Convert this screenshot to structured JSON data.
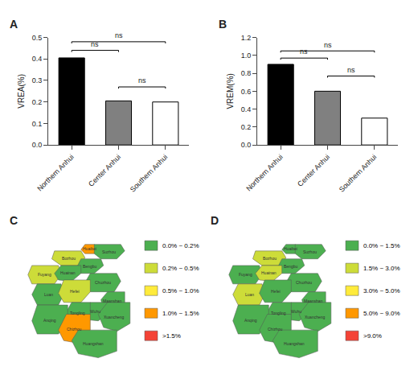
{
  "chart_data": [
    {
      "type": "bar",
      "title": "A",
      "categories": [
        "Northern Anhui",
        "Center Anhui",
        "Southern Anhui"
      ],
      "values": [
        0.405,
        0.205,
        0.2
      ],
      "colors": [
        "black",
        "#808080",
        "white"
      ],
      "ylabel": "VREA(%)",
      "ylim": [
        0,
        0.5
      ],
      "yticks": [
        {
          "value": 0,
          "label": "0.0"
        },
        0.1,
        0.2,
        0.3,
        0.4,
        0.5
      ],
      "grid": false,
      "annotations": [
        {
          "bars": [
            0,
            1
          ],
          "y": 0.44,
          "text": "ns"
        },
        {
          "bars": [
            0,
            2
          ],
          "y": 0.48,
          "text": "ns"
        },
        {
          "bars": [
            1,
            2
          ],
          "y": 0.27,
          "text": "ns"
        }
      ]
    },
    {
      "type": "bar",
      "title": "B",
      "categories": [
        "Northern Anhui",
        "Center Anhui",
        "Southern Anhui"
      ],
      "values": [
        0.9,
        0.6,
        0.3
      ],
      "colors": [
        "black",
        "#808080",
        "white"
      ],
      "ylabel": "VREM(%)",
      "ylim": [
        0,
        1.2
      ],
      "yticks": [
        {
          "value": 0,
          "label": "0.0"
        },
        0.2,
        0.4,
        0.6,
        0.8,
        {
          "value": 1,
          "label": "1.0"
        },
        1.2
      ],
      "grid": false,
      "annotations": [
        {
          "bars": [
            0,
            1
          ],
          "y": 0.97,
          "text": "ns"
        },
        {
          "bars": [
            0,
            2
          ],
          "y": 1.05,
          "text": "ns"
        },
        {
          "bars": [
            1,
            2
          ],
          "y": 0.77,
          "text": "ns"
        }
      ]
    },
    {
      "type": "map",
      "title": "C",
      "xlim": [
        0,
        1
      ],
      "ylim": [
        0,
        1
      ],
      "tick_labels": false,
      "grid": false,
      "series": [
        {
          "name": "0.0% ~ 0.2%",
          "color": "#4caf50"
        },
        {
          "name": "0.2% ~ 0.5%",
          "color": "#cddc39"
        },
        {
          "name": "0.5% ~ 1.0%",
          "color": "#ffeb3b"
        },
        {
          "name": "1.0% ~ 1.5%",
          "color": "#ff9800"
        },
        {
          "name": ">1.5%",
          "color": "#f44336"
        }
      ],
      "regions": [
        {
          "name": "Huaibei",
          "color": "#ff9800",
          "polygon": [
            [
              0.58,
              0.93
            ],
            [
              0.65,
              0.93
            ],
            [
              0.68,
              0.9
            ],
            [
              0.65,
              0.86
            ],
            [
              0.58,
              0.86
            ],
            [
              0.55,
              0.89
            ]
          ]
        },
        {
          "name": "Suzhou",
          "color": "#4caf50",
          "polygon": [
            [
              0.65,
              0.93
            ],
            [
              0.85,
              0.93
            ],
            [
              0.88,
              0.88
            ],
            [
              0.82,
              0.82
            ],
            [
              0.7,
              0.82
            ],
            [
              0.65,
              0.86
            ]
          ]
        },
        {
          "name": "Bozhou",
          "color": "#cddc39",
          "polygon": [
            [
              0.35,
              0.88
            ],
            [
              0.55,
              0.88
            ],
            [
              0.58,
              0.83
            ],
            [
              0.55,
              0.77
            ],
            [
              0.4,
              0.77
            ],
            [
              0.33,
              0.82
            ]
          ]
        },
        {
          "name": "Fuyang",
          "color": "#cddc39",
          "polygon": [
            [
              0.18,
              0.77
            ],
            [
              0.38,
              0.77
            ],
            [
              0.4,
              0.7
            ],
            [
              0.35,
              0.63
            ],
            [
              0.18,
              0.63
            ],
            [
              0.15,
              0.7
            ]
          ]
        },
        {
          "name": "Bengbu",
          "color": "#4caf50",
          "polygon": [
            [
              0.55,
              0.82
            ],
            [
              0.7,
              0.82
            ],
            [
              0.72,
              0.77
            ],
            [
              0.65,
              0.71
            ],
            [
              0.55,
              0.71
            ],
            [
              0.52,
              0.76
            ]
          ]
        },
        {
          "name": "Huainan",
          "color": "#4caf50",
          "polygon": [
            [
              0.4,
              0.77
            ],
            [
              0.55,
              0.77
            ],
            [
              0.55,
              0.71
            ],
            [
              0.48,
              0.65
            ],
            [
              0.38,
              0.66
            ],
            [
              0.35,
              0.71
            ]
          ]
        },
        {
          "name": "Chuzhou",
          "color": "#4caf50",
          "polygon": [
            [
              0.62,
              0.71
            ],
            [
              0.82,
              0.71
            ],
            [
              0.85,
              0.65
            ],
            [
              0.8,
              0.57
            ],
            [
              0.62,
              0.57
            ],
            [
              0.58,
              0.64
            ]
          ]
        },
        {
          "name": "Luan",
          "color": "#4caf50",
          "polygon": [
            [
              0.22,
              0.63
            ],
            [
              0.4,
              0.63
            ],
            [
              0.42,
              0.55
            ],
            [
              0.38,
              0.47
            ],
            [
              0.22,
              0.47
            ],
            [
              0.18,
              0.55
            ]
          ]
        },
        {
          "name": "Hefei",
          "color": "#cddc39",
          "polygon": [
            [
              0.42,
              0.66
            ],
            [
              0.62,
              0.66
            ],
            [
              0.62,
              0.57
            ],
            [
              0.55,
              0.49
            ],
            [
              0.42,
              0.49
            ],
            [
              0.38,
              0.56
            ]
          ]
        },
        {
          "name": "Maanshan",
          "color": "#4caf50",
          "polygon": [
            [
              0.75,
              0.57
            ],
            [
              0.88,
              0.57
            ],
            [
              0.88,
              0.48
            ],
            [
              0.8,
              0.42
            ],
            [
              0.72,
              0.44
            ],
            [
              0.7,
              0.51
            ]
          ]
        },
        {
          "name": "Wuhu",
          "color": "#4caf50",
          "polygon": [
            [
              0.62,
              0.49
            ],
            [
              0.75,
              0.49
            ],
            [
              0.75,
              0.4
            ],
            [
              0.68,
              0.35
            ],
            [
              0.58,
              0.36
            ],
            [
              0.58,
              0.44
            ]
          ]
        },
        {
          "name": "Tongling",
          "color": "#4caf50",
          "polygon": [
            [
              0.48,
              0.49
            ],
            [
              0.62,
              0.49
            ],
            [
              0.62,
              0.4
            ],
            [
              0.55,
              0.33
            ],
            [
              0.45,
              0.34
            ],
            [
              0.44,
              0.42
            ]
          ]
        },
        {
          "name": "Xuancheng",
          "color": "#4caf50",
          "polygon": [
            [
              0.75,
              0.49
            ],
            [
              0.92,
              0.49
            ],
            [
              0.92,
              0.33
            ],
            [
              0.82,
              0.27
            ],
            [
              0.72,
              0.3
            ],
            [
              0.68,
              0.4
            ]
          ]
        },
        {
          "name": "Anqing",
          "color": "#4caf50",
          "polygon": [
            [
              0.22,
              0.47
            ],
            [
              0.45,
              0.47
            ],
            [
              0.45,
              0.34
            ],
            [
              0.38,
              0.25
            ],
            [
              0.22,
              0.25
            ],
            [
              0.18,
              0.35
            ]
          ]
        },
        {
          "name": "Chizhou",
          "color": "#ff9800",
          "polygon": [
            [
              0.44,
              0.4
            ],
            [
              0.62,
              0.4
            ],
            [
              0.62,
              0.28
            ],
            [
              0.53,
              0.18
            ],
            [
              0.42,
              0.2
            ],
            [
              0.38,
              0.28
            ]
          ]
        },
        {
          "name": "Huangshan",
          "color": "#4caf50",
          "polygon": [
            [
              0.53,
              0.28
            ],
            [
              0.82,
              0.28
            ],
            [
              0.82,
              0.12
            ],
            [
              0.68,
              0.07
            ],
            [
              0.53,
              0.1
            ],
            [
              0.48,
              0.2
            ]
          ]
        }
      ]
    },
    {
      "type": "map",
      "title": "D",
      "xlim": [
        0,
        1
      ],
      "ylim": [
        0,
        1
      ],
      "tick_labels": false,
      "grid": false,
      "series": [
        {
          "name": "0.0% ~ 1.5%",
          "color": "#4caf50"
        },
        {
          "name": "1.5% ~ 3.0%",
          "color": "#cddc39"
        },
        {
          "name": "3.0% ~ 5.0%",
          "color": "#ffeb3b"
        },
        {
          "name": "5.0% ~ 9.0%",
          "color": "#ff9800"
        },
        {
          "name": ">9.0%",
          "color": "#f44336"
        }
      ],
      "regions": [
        {
          "name": "Huaibei",
          "color": "#4caf50",
          "polygon": [
            [
              0.58,
              0.93
            ],
            [
              0.65,
              0.93
            ],
            [
              0.68,
              0.9
            ],
            [
              0.65,
              0.86
            ],
            [
              0.58,
              0.86
            ],
            [
              0.55,
              0.89
            ]
          ]
        },
        {
          "name": "Suzhou",
          "color": "#4caf50",
          "polygon": [
            [
              0.65,
              0.93
            ],
            [
              0.85,
              0.93
            ],
            [
              0.88,
              0.88
            ],
            [
              0.82,
              0.82
            ],
            [
              0.7,
              0.82
            ],
            [
              0.65,
              0.86
            ]
          ]
        },
        {
          "name": "Bozhou",
          "color": "#cddc39",
          "polygon": [
            [
              0.35,
              0.88
            ],
            [
              0.55,
              0.88
            ],
            [
              0.58,
              0.83
            ],
            [
              0.55,
              0.77
            ],
            [
              0.4,
              0.77
            ],
            [
              0.33,
              0.82
            ]
          ]
        },
        {
          "name": "Fuyang",
          "color": "#4caf50",
          "polygon": [
            [
              0.18,
              0.77
            ],
            [
              0.38,
              0.77
            ],
            [
              0.4,
              0.7
            ],
            [
              0.35,
              0.63
            ],
            [
              0.18,
              0.63
            ],
            [
              0.15,
              0.7
            ]
          ]
        },
        {
          "name": "Bengbu",
          "color": "#4caf50",
          "polygon": [
            [
              0.55,
              0.82
            ],
            [
              0.7,
              0.82
            ],
            [
              0.72,
              0.77
            ],
            [
              0.65,
              0.71
            ],
            [
              0.55,
              0.71
            ],
            [
              0.52,
              0.76
            ]
          ]
        },
        {
          "name": "Huainan",
          "color": "#cddc39",
          "polygon": [
            [
              0.4,
              0.77
            ],
            [
              0.55,
              0.77
            ],
            [
              0.55,
              0.71
            ],
            [
              0.48,
              0.65
            ],
            [
              0.38,
              0.66
            ],
            [
              0.35,
              0.71
            ]
          ]
        },
        {
          "name": "Chuzhou",
          "color": "#4caf50",
          "polygon": [
            [
              0.62,
              0.71
            ],
            [
              0.82,
              0.71
            ],
            [
              0.85,
              0.65
            ],
            [
              0.8,
              0.57
            ],
            [
              0.62,
              0.57
            ],
            [
              0.58,
              0.64
            ]
          ]
        },
        {
          "name": "Luan",
          "color": "#cddc39",
          "polygon": [
            [
              0.22,
              0.63
            ],
            [
              0.4,
              0.63
            ],
            [
              0.42,
              0.55
            ],
            [
              0.38,
              0.47
            ],
            [
              0.22,
              0.47
            ],
            [
              0.18,
              0.55
            ]
          ]
        },
        {
          "name": "Hefei",
          "color": "#4caf50",
          "polygon": [
            [
              0.42,
              0.66
            ],
            [
              0.62,
              0.66
            ],
            [
              0.62,
              0.57
            ],
            [
              0.55,
              0.49
            ],
            [
              0.42,
              0.49
            ],
            [
              0.38,
              0.56
            ]
          ]
        },
        {
          "name": "Maanshan",
          "color": "#4caf50",
          "polygon": [
            [
              0.75,
              0.57
            ],
            [
              0.88,
              0.57
            ],
            [
              0.88,
              0.48
            ],
            [
              0.8,
              0.42
            ],
            [
              0.72,
              0.44
            ],
            [
              0.7,
              0.51
            ]
          ]
        },
        {
          "name": "Wuhu",
          "color": "#4caf50",
          "polygon": [
            [
              0.62,
              0.49
            ],
            [
              0.75,
              0.49
            ],
            [
              0.75,
              0.4
            ],
            [
              0.68,
              0.35
            ],
            [
              0.58,
              0.36
            ],
            [
              0.58,
              0.44
            ]
          ]
        },
        {
          "name": "Tongling",
          "color": "#4caf50",
          "polygon": [
            [
              0.48,
              0.49
            ],
            [
              0.62,
              0.49
            ],
            [
              0.62,
              0.4
            ],
            [
              0.55,
              0.33
            ],
            [
              0.45,
              0.34
            ],
            [
              0.44,
              0.42
            ]
          ]
        },
        {
          "name": "Xuancheng",
          "color": "#4caf50",
          "polygon": [
            [
              0.75,
              0.49
            ],
            [
              0.92,
              0.49
            ],
            [
              0.92,
              0.33
            ],
            [
              0.82,
              0.27
            ],
            [
              0.72,
              0.3
            ],
            [
              0.68,
              0.4
            ]
          ]
        },
        {
          "name": "Anqing",
          "color": "#4caf50",
          "polygon": [
            [
              0.22,
              0.47
            ],
            [
              0.45,
              0.47
            ],
            [
              0.45,
              0.34
            ],
            [
              0.38,
              0.25
            ],
            [
              0.22,
              0.25
            ],
            [
              0.18,
              0.35
            ]
          ]
        },
        {
          "name": "Chizhou",
          "color": "#4caf50",
          "polygon": [
            [
              0.44,
              0.4
            ],
            [
              0.62,
              0.4
            ],
            [
              0.62,
              0.28
            ],
            [
              0.53,
              0.18
            ],
            [
              0.42,
              0.2
            ],
            [
              0.38,
              0.28
            ]
          ]
        },
        {
          "name": "Huangshan",
          "color": "#4caf50",
          "polygon": [
            [
              0.53,
              0.28
            ],
            [
              0.82,
              0.28
            ],
            [
              0.82,
              0.12
            ],
            [
              0.68,
              0.07
            ],
            [
              0.53,
              0.1
            ],
            [
              0.48,
              0.2
            ]
          ]
        }
      ]
    }
  ]
}
